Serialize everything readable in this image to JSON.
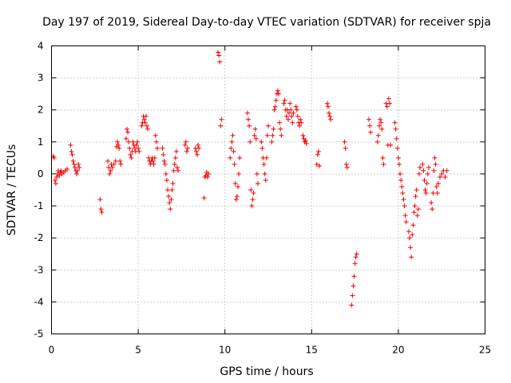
{
  "chart_data": {
    "type": "scatter",
    "title": "Day 197 of 2019, Sidereal Day-to-day VTEC variation (SDTVAR) for receiver spja",
    "xlabel": "GPS time / hours",
    "ylabel": "SDTVAR / TECUs",
    "xlim": [
      0,
      25
    ],
    "ylim": [
      -5,
      4
    ],
    "xticks": [
      0,
      5,
      10,
      15,
      20,
      25
    ],
    "yticks": [
      -5,
      -4,
      -3,
      -2,
      -1,
      0,
      1,
      2,
      3,
      4
    ],
    "xtick_labels": [
      "0",
      "5",
      "10",
      "15",
      "20",
      "25"
    ],
    "ytick_labels": [
      "-5",
      "-4",
      "-3",
      "-2",
      "-1",
      "0",
      "1",
      "2",
      "3",
      "4"
    ],
    "grid": true,
    "marker": "+",
    "color": "#ee0000",
    "series": [
      {
        "name": "SDTVAR",
        "points": [
          [
            0.1,
            0.55
          ],
          [
            0.15,
            0.5
          ],
          [
            0.2,
            -0.2
          ],
          [
            0.25,
            -0.3
          ],
          [
            0.3,
            -0.1
          ],
          [
            0.35,
            0.0
          ],
          [
            0.4,
            0.1
          ],
          [
            0.45,
            -0.05
          ],
          [
            0.5,
            0.05
          ],
          [
            0.55,
            0.1
          ],
          [
            0.6,
            0.0
          ],
          [
            0.7,
            0.05
          ],
          [
            0.8,
            0.1
          ],
          [
            0.9,
            0.15
          ],
          [
            1.1,
            0.9
          ],
          [
            1.15,
            0.7
          ],
          [
            1.2,
            0.6
          ],
          [
            1.25,
            0.4
          ],
          [
            1.3,
            0.3
          ],
          [
            1.35,
            0.2
          ],
          [
            1.4,
            0.1
          ],
          [
            1.45,
            0.0
          ],
          [
            1.5,
            0.1
          ],
          [
            1.55,
            0.3
          ],
          [
            1.6,
            0.2
          ],
          [
            2.8,
            -0.8
          ],
          [
            2.85,
            -1.1
          ],
          [
            2.9,
            -1.2
          ],
          [
            3.25,
            0.4
          ],
          [
            3.3,
            0.2
          ],
          [
            3.35,
            0.0
          ],
          [
            3.4,
            0.1
          ],
          [
            3.45,
            0.3
          ],
          [
            3.5,
            0.2
          ],
          [
            3.6,
            0.3
          ],
          [
            3.7,
            0.4
          ],
          [
            3.75,
            0.85
          ],
          [
            3.8,
            1.0
          ],
          [
            3.85,
            0.9
          ],
          [
            3.9,
            0.8
          ],
          [
            3.95,
            0.4
          ],
          [
            4.0,
            0.3
          ],
          [
            4.3,
            1.1
          ],
          [
            4.35,
            1.4
          ],
          [
            4.4,
            1.3
          ],
          [
            4.45,
            1.0
          ],
          [
            4.5,
            0.8
          ],
          [
            4.55,
            0.6
          ],
          [
            4.6,
            0.5
          ],
          [
            4.65,
            0.7
          ],
          [
            4.7,
            1.0
          ],
          [
            4.75,
            0.9
          ],
          [
            4.8,
            0.8
          ],
          [
            4.85,
            0.7
          ],
          [
            4.9,
            0.9
          ],
          [
            4.95,
            1.0
          ],
          [
            5.0,
            0.8
          ],
          [
            5.05,
            0.7
          ],
          [
            5.2,
            1.5
          ],
          [
            5.25,
            1.6
          ],
          [
            5.3,
            1.8
          ],
          [
            5.35,
            1.7
          ],
          [
            5.4,
            1.6
          ],
          [
            5.45,
            1.8
          ],
          [
            5.5,
            1.5
          ],
          [
            5.55,
            1.4
          ],
          [
            5.6,
            0.5
          ],
          [
            5.65,
            0.4
          ],
          [
            5.7,
            0.3
          ],
          [
            5.75,
            0.4
          ],
          [
            5.8,
            0.5
          ],
          [
            5.85,
            0.4
          ],
          [
            5.9,
            0.3
          ],
          [
            5.95,
            0.5
          ],
          [
            6.0,
            1.2
          ],
          [
            6.05,
            1.0
          ],
          [
            6.1,
            0.8
          ],
          [
            6.4,
            0.8
          ],
          [
            6.45,
            0.6
          ],
          [
            6.5,
            0.4
          ],
          [
            6.55,
            0.3
          ],
          [
            6.6,
            0.0
          ],
          [
            6.65,
            -0.2
          ],
          [
            6.7,
            -0.5
          ],
          [
            6.75,
            -0.7
          ],
          [
            6.8,
            -0.9
          ],
          [
            6.85,
            -1.1
          ],
          [
            6.9,
            -0.8
          ],
          [
            6.95,
            -0.5
          ],
          [
            7.0,
            -0.3
          ],
          [
            7.05,
            0.1
          ],
          [
            7.1,
            0.3
          ],
          [
            7.15,
            0.5
          ],
          [
            7.2,
            0.7
          ],
          [
            7.25,
            0.2
          ],
          [
            7.3,
            0.1
          ],
          [
            7.7,
            0.9
          ],
          [
            7.75,
            1.0
          ],
          [
            7.8,
            0.7
          ],
          [
            7.85,
            0.8
          ],
          [
            8.3,
            0.8
          ],
          [
            8.35,
            0.7
          ],
          [
            8.4,
            0.6
          ],
          [
            8.45,
            0.9
          ],
          [
            8.5,
            0.8
          ],
          [
            8.8,
            -0.75
          ],
          [
            8.85,
            -0.1
          ],
          [
            8.9,
            -0.05
          ],
          [
            8.95,
            0.05
          ],
          [
            9.0,
            -0.1
          ],
          [
            9.05,
            0.0
          ],
          [
            9.6,
            3.8
          ],
          [
            9.65,
            3.7
          ],
          [
            9.7,
            3.5
          ],
          [
            9.75,
            1.5
          ],
          [
            9.8,
            1.7
          ],
          [
            10.3,
            0.5
          ],
          [
            10.35,
            0.8
          ],
          [
            10.4,
            1.0
          ],
          [
            10.45,
            1.2
          ],
          [
            10.5,
            0.7
          ],
          [
            10.55,
            0.3
          ],
          [
            10.6,
            -0.3
          ],
          [
            10.65,
            -0.8
          ],
          [
            10.7,
            -0.7
          ],
          [
            10.75,
            -0.4
          ],
          [
            10.8,
            0.0
          ],
          [
            10.85,
            0.5
          ],
          [
            11.3,
            1.9
          ],
          [
            11.35,
            1.7
          ],
          [
            11.4,
            1.5
          ],
          [
            11.45,
            1.0
          ],
          [
            11.5,
            -0.5
          ],
          [
            11.55,
            -1.0
          ],
          [
            11.6,
            -0.8
          ],
          [
            11.65,
            -0.6
          ],
          [
            11.7,
            1.2
          ],
          [
            11.75,
            1.4
          ],
          [
            11.8,
            1.1
          ],
          [
            11.85,
            0.0
          ],
          [
            11.9,
            -0.3
          ],
          [
            12.1,
            1.0
          ],
          [
            12.15,
            0.8
          ],
          [
            12.2,
            0.5
          ],
          [
            12.25,
            0.3
          ],
          [
            12.3,
            0.0
          ],
          [
            12.35,
            -0.2
          ],
          [
            12.4,
            0.5
          ],
          [
            12.45,
            1.2
          ],
          [
            12.5,
            1.5
          ],
          [
            12.7,
            1.0
          ],
          [
            12.75,
            1.2
          ],
          [
            12.8,
            1.4
          ],
          [
            12.85,
            2.0
          ],
          [
            12.9,
            2.1
          ],
          [
            12.95,
            2.3
          ],
          [
            13.0,
            2.5
          ],
          [
            13.05,
            2.6
          ],
          [
            13.1,
            2.5
          ],
          [
            13.15,
            1.6
          ],
          [
            13.2,
            1.4
          ],
          [
            13.25,
            1.2
          ],
          [
            13.4,
            2.2
          ],
          [
            13.45,
            2.3
          ],
          [
            13.5,
            2.0
          ],
          [
            13.55,
            1.8
          ],
          [
            13.6,
            2.0
          ],
          [
            13.65,
            1.7
          ],
          [
            13.7,
            1.9
          ],
          [
            13.75,
            2.2
          ],
          [
            13.8,
            2.0
          ],
          [
            13.85,
            1.8
          ],
          [
            13.9,
            1.6
          ],
          [
            13.95,
            1.9
          ],
          [
            14.1,
            2.1
          ],
          [
            14.15,
            2.0
          ],
          [
            14.2,
            1.8
          ],
          [
            14.25,
            1.6
          ],
          [
            14.3,
            1.5
          ],
          [
            14.35,
            1.7
          ],
          [
            14.4,
            1.6
          ],
          [
            14.5,
            1.2
          ],
          [
            14.55,
            1.1
          ],
          [
            14.6,
            1.0
          ],
          [
            14.65,
            1.05
          ],
          [
            14.7,
            0.95
          ],
          [
            15.3,
            0.3
          ],
          [
            15.35,
            0.6
          ],
          [
            15.4,
            0.7
          ],
          [
            15.45,
            0.25
          ],
          [
            15.9,
            2.2
          ],
          [
            15.95,
            2.1
          ],
          [
            16.0,
            1.9
          ],
          [
            16.05,
            1.8
          ],
          [
            16.1,
            1.7
          ],
          [
            16.9,
            1.0
          ],
          [
            16.95,
            0.8
          ],
          [
            17.0,
            0.3
          ],
          [
            17.05,
            0.2
          ],
          [
            17.3,
            -4.1
          ],
          [
            17.35,
            -3.8
          ],
          [
            17.4,
            -3.5
          ],
          [
            17.45,
            -3.2
          ],
          [
            17.5,
            -2.8
          ],
          [
            17.55,
            -2.6
          ],
          [
            17.6,
            -2.5
          ],
          [
            18.3,
            1.7
          ],
          [
            18.35,
            1.5
          ],
          [
            18.4,
            1.3
          ],
          [
            18.8,
            1.0
          ],
          [
            18.85,
            1.2
          ],
          [
            18.9,
            1.5
          ],
          [
            18.95,
            1.7
          ],
          [
            19.0,
            1.6
          ],
          [
            19.05,
            1.4
          ],
          [
            19.1,
            0.5
          ],
          [
            19.15,
            0.3
          ],
          [
            19.3,
            2.2
          ],
          [
            19.35,
            2.1
          ],
          [
            19.45,
            2.35
          ],
          [
            19.5,
            2.2
          ],
          [
            19.4,
            0.9
          ],
          [
            19.55,
            0.9
          ],
          [
            19.8,
            1.6
          ],
          [
            19.85,
            1.4
          ],
          [
            19.9,
            1.1
          ],
          [
            19.95,
            0.8
          ],
          [
            20.0,
            0.5
          ],
          [
            20.05,
            0.3
          ],
          [
            20.1,
            0.0
          ],
          [
            20.15,
            -0.2
          ],
          [
            20.2,
            -0.4
          ],
          [
            20.25,
            -0.6
          ],
          [
            20.3,
            -0.8
          ],
          [
            20.35,
            -1.0
          ],
          [
            20.4,
            -1.3
          ],
          [
            20.45,
            -1.5
          ],
          [
            20.6,
            -1.8
          ],
          [
            20.65,
            -2.0
          ],
          [
            20.7,
            -2.3
          ],
          [
            20.75,
            -2.6
          ],
          [
            20.8,
            -1.9
          ],
          [
            20.85,
            -1.6
          ],
          [
            20.9,
            -1.2
          ],
          [
            20.95,
            -1.0
          ],
          [
            21.0,
            -0.7
          ],
          [
            21.05,
            -0.5
          ],
          [
            21.1,
            -1.3
          ],
          [
            21.15,
            -1.1
          ],
          [
            21.2,
            0.0
          ],
          [
            21.25,
            0.2
          ],
          [
            21.4,
            0.3
          ],
          [
            21.45,
            0.1
          ],
          [
            21.5,
            -0.2
          ],
          [
            21.55,
            -0.5
          ],
          [
            21.6,
            -0.6
          ],
          [
            21.65,
            -0.3
          ],
          [
            21.7,
            0.0
          ],
          [
            21.75,
            0.2
          ],
          [
            21.9,
            -0.9
          ],
          [
            21.95,
            -1.1
          ],
          [
            22.0,
            -0.6
          ],
          [
            22.05,
            0.1
          ],
          [
            22.1,
            0.5
          ],
          [
            22.15,
            0.3
          ],
          [
            22.2,
            -0.4
          ],
          [
            22.25,
            -0.6
          ],
          [
            22.3,
            -0.3
          ],
          [
            22.4,
            -0.1
          ],
          [
            22.5,
            0.0
          ],
          [
            22.6,
            0.1
          ],
          [
            22.7,
            -0.1
          ],
          [
            22.8,
            0.1
          ]
        ]
      }
    ]
  }
}
